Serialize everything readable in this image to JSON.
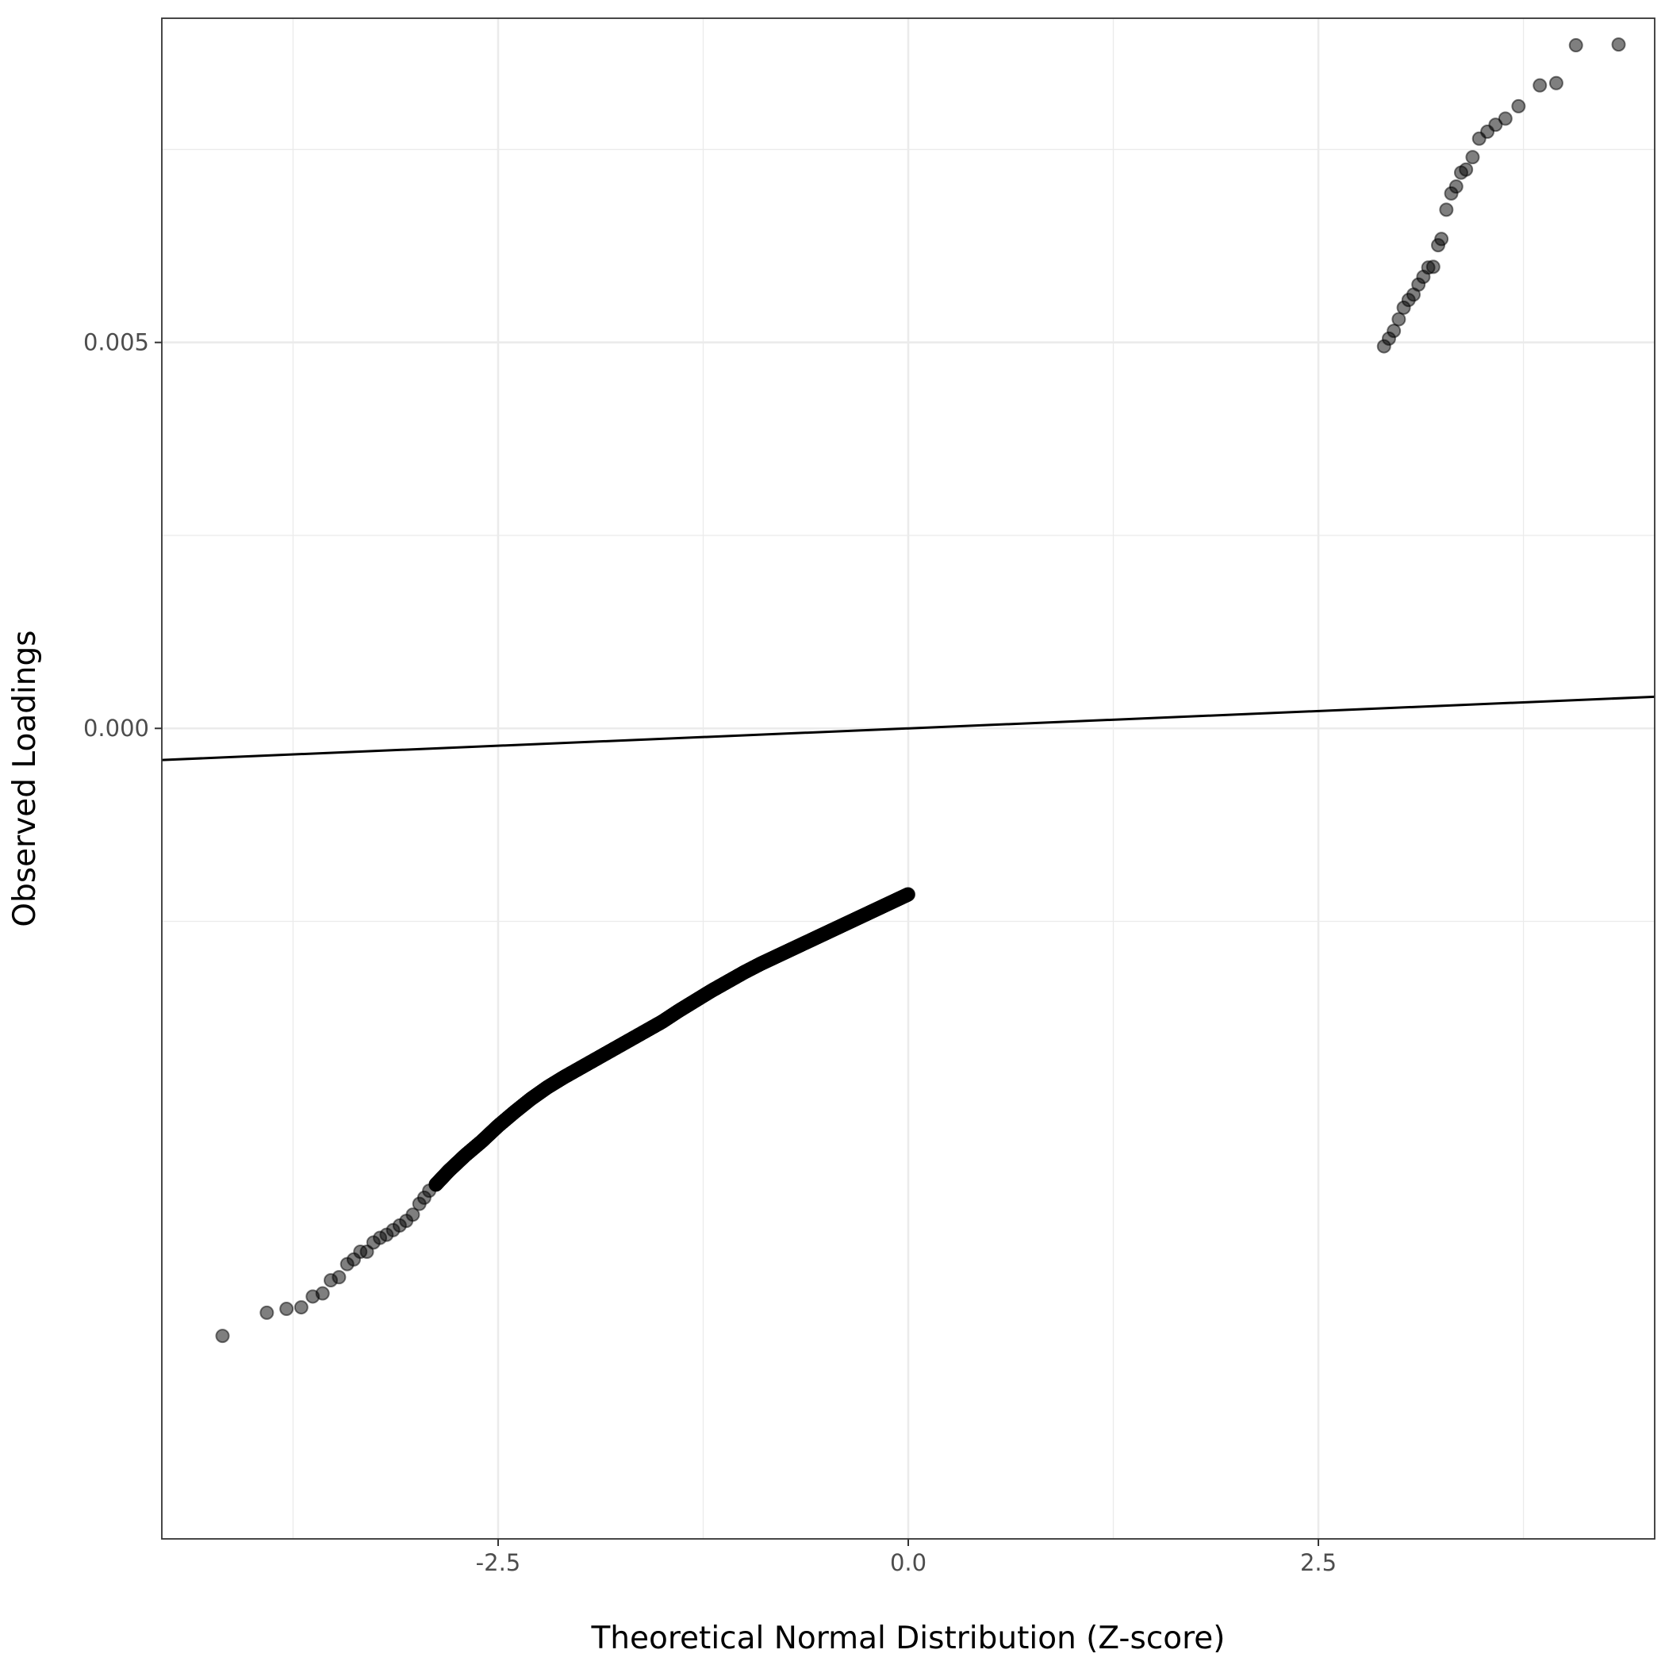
{
  "chart_data": {
    "type": "scatter",
    "title": "",
    "xlabel": "Theoretical Normal Distribution (Z-score)",
    "ylabel": "Observed Loadings",
    "xlim": [
      -4.55,
      4.55
    ],
    "ylim": [
      -0.0105,
      0.0092
    ],
    "x_ticks": [
      {
        "value": -2.5,
        "label": "-2.5"
      },
      {
        "value": 0.0,
        "label": "0.0"
      },
      {
        "value": 2.5,
        "label": "2.5"
      }
    ],
    "y_ticks": [
      {
        "value": 0.0,
        "label": "0.000"
      },
      {
        "value": 0.005,
        "label": "0.005"
      }
    ],
    "x_minor_grid": [
      -3.75,
      -1.25,
      1.25,
      3.75
    ],
    "y_minor_grid": [
      -0.0025,
      0.0025,
      0.0075
    ],
    "grid": true,
    "legend": "none",
    "point_color": "#000000",
    "point_opacity": 0.5,
    "reference_line": {
      "slope": 9e-05,
      "intercept": 0.0,
      "color": "#000000"
    },
    "outlier_points": [
      {
        "x": -4.18,
        "y": -0.00787
      },
      {
        "x": -3.91,
        "y": -0.00757
      },
      {
        "x": -3.79,
        "y": -0.00752
      },
      {
        "x": -3.7,
        "y": -0.0075
      },
      {
        "x": -3.63,
        "y": -0.00736
      },
      {
        "x": -3.57,
        "y": -0.00732
      },
      {
        "x": -3.52,
        "y": -0.00715
      },
      {
        "x": -3.47,
        "y": -0.00711
      },
      {
        "x": -3.42,
        "y": -0.00694
      },
      {
        "x": -3.38,
        "y": -0.00688
      },
      {
        "x": -3.34,
        "y": -0.00678
      },
      {
        "x": -3.3,
        "y": -0.00678
      },
      {
        "x": -3.26,
        "y": -0.00666
      },
      {
        "x": -3.22,
        "y": -0.0066
      },
      {
        "x": -3.18,
        "y": -0.00656
      },
      {
        "x": -3.14,
        "y": -0.0065
      },
      {
        "x": -3.1,
        "y": -0.00644
      },
      {
        "x": -3.06,
        "y": -0.00638
      },
      {
        "x": -3.02,
        "y": -0.0063
      },
      {
        "x": -2.98,
        "y": -0.00616
      },
      {
        "x": -2.95,
        "y": -0.00608
      },
      {
        "x": -2.92,
        "y": -0.00599
      },
      {
        "x": -2.88,
        "y": -0.00591
      },
      {
        "x": 2.9,
        "y": 0.00495
      },
      {
        "x": 2.93,
        "y": 0.00505
      },
      {
        "x": 2.96,
        "y": 0.00515
      },
      {
        "x": 2.99,
        "y": 0.0053
      },
      {
        "x": 3.02,
        "y": 0.00545
      },
      {
        "x": 3.05,
        "y": 0.00555
      },
      {
        "x": 3.08,
        "y": 0.00562
      },
      {
        "x": 3.11,
        "y": 0.00575
      },
      {
        "x": 3.14,
        "y": 0.00585
      },
      {
        "x": 3.17,
        "y": 0.00597
      },
      {
        "x": 3.2,
        "y": 0.00598
      },
      {
        "x": 3.23,
        "y": 0.00626
      },
      {
        "x": 3.25,
        "y": 0.00634
      },
      {
        "x": 3.28,
        "y": 0.00672
      },
      {
        "x": 3.31,
        "y": 0.00693
      },
      {
        "x": 3.34,
        "y": 0.00702
      },
      {
        "x": 3.37,
        "y": 0.0072
      },
      {
        "x": 3.4,
        "y": 0.00724
      },
      {
        "x": 3.44,
        "y": 0.0074
      },
      {
        "x": 3.48,
        "y": 0.00764
      },
      {
        "x": 3.53,
        "y": 0.00773
      },
      {
        "x": 3.58,
        "y": 0.00782
      },
      {
        "x": 3.64,
        "y": 0.0079
      },
      {
        "x": 3.72,
        "y": 0.00806
      },
      {
        "x": 3.85,
        "y": 0.00833
      },
      {
        "x": 3.95,
        "y": 0.00836
      },
      {
        "x": 4.07,
        "y": 0.00885
      },
      {
        "x": 4.33,
        "y": 0.00886
      }
    ],
    "dense_curve": [
      {
        "x": -2.88,
        "y": -0.00591
      },
      {
        "x": -2.8,
        "y": -0.00573
      },
      {
        "x": -2.7,
        "y": -0.00553
      },
      {
        "x": -2.6,
        "y": -0.00535
      },
      {
        "x": -2.5,
        "y": -0.00515
      },
      {
        "x": -2.4,
        "y": -0.00497
      },
      {
        "x": -2.3,
        "y": -0.0048
      },
      {
        "x": -2.2,
        "y": -0.00465
      },
      {
        "x": -2.1,
        "y": -0.00452
      },
      {
        "x": -2.0,
        "y": -0.0044
      },
      {
        "x": -1.9,
        "y": -0.00428
      },
      {
        "x": -1.8,
        "y": -0.00416
      },
      {
        "x": -1.7,
        "y": -0.00404
      },
      {
        "x": -1.6,
        "y": -0.00392
      },
      {
        "x": -1.5,
        "y": -0.0038
      },
      {
        "x": -1.4,
        "y": -0.00366
      },
      {
        "x": -1.3,
        "y": -0.00353
      },
      {
        "x": -1.2,
        "y": -0.0034
      },
      {
        "x": -1.1,
        "y": -0.00328
      },
      {
        "x": -1.0,
        "y": -0.00316
      },
      {
        "x": -0.9,
        "y": -0.00305
      },
      {
        "x": -0.8,
        "y": -0.00295
      },
      {
        "x": -0.7,
        "y": -0.00285
      },
      {
        "x": -0.6,
        "y": -0.00275
      },
      {
        "x": -0.5,
        "y": -0.00265
      },
      {
        "x": -0.4,
        "y": -0.00255
      },
      {
        "x": -0.3,
        "y": -0.00245
      },
      {
        "x": -0.2,
        "y": -0.00235
      },
      {
        "x": -0.1,
        "y": -0.00225
      },
      {
        "x": 0.0,
        "y": -0.00215
      }
    ]
  }
}
